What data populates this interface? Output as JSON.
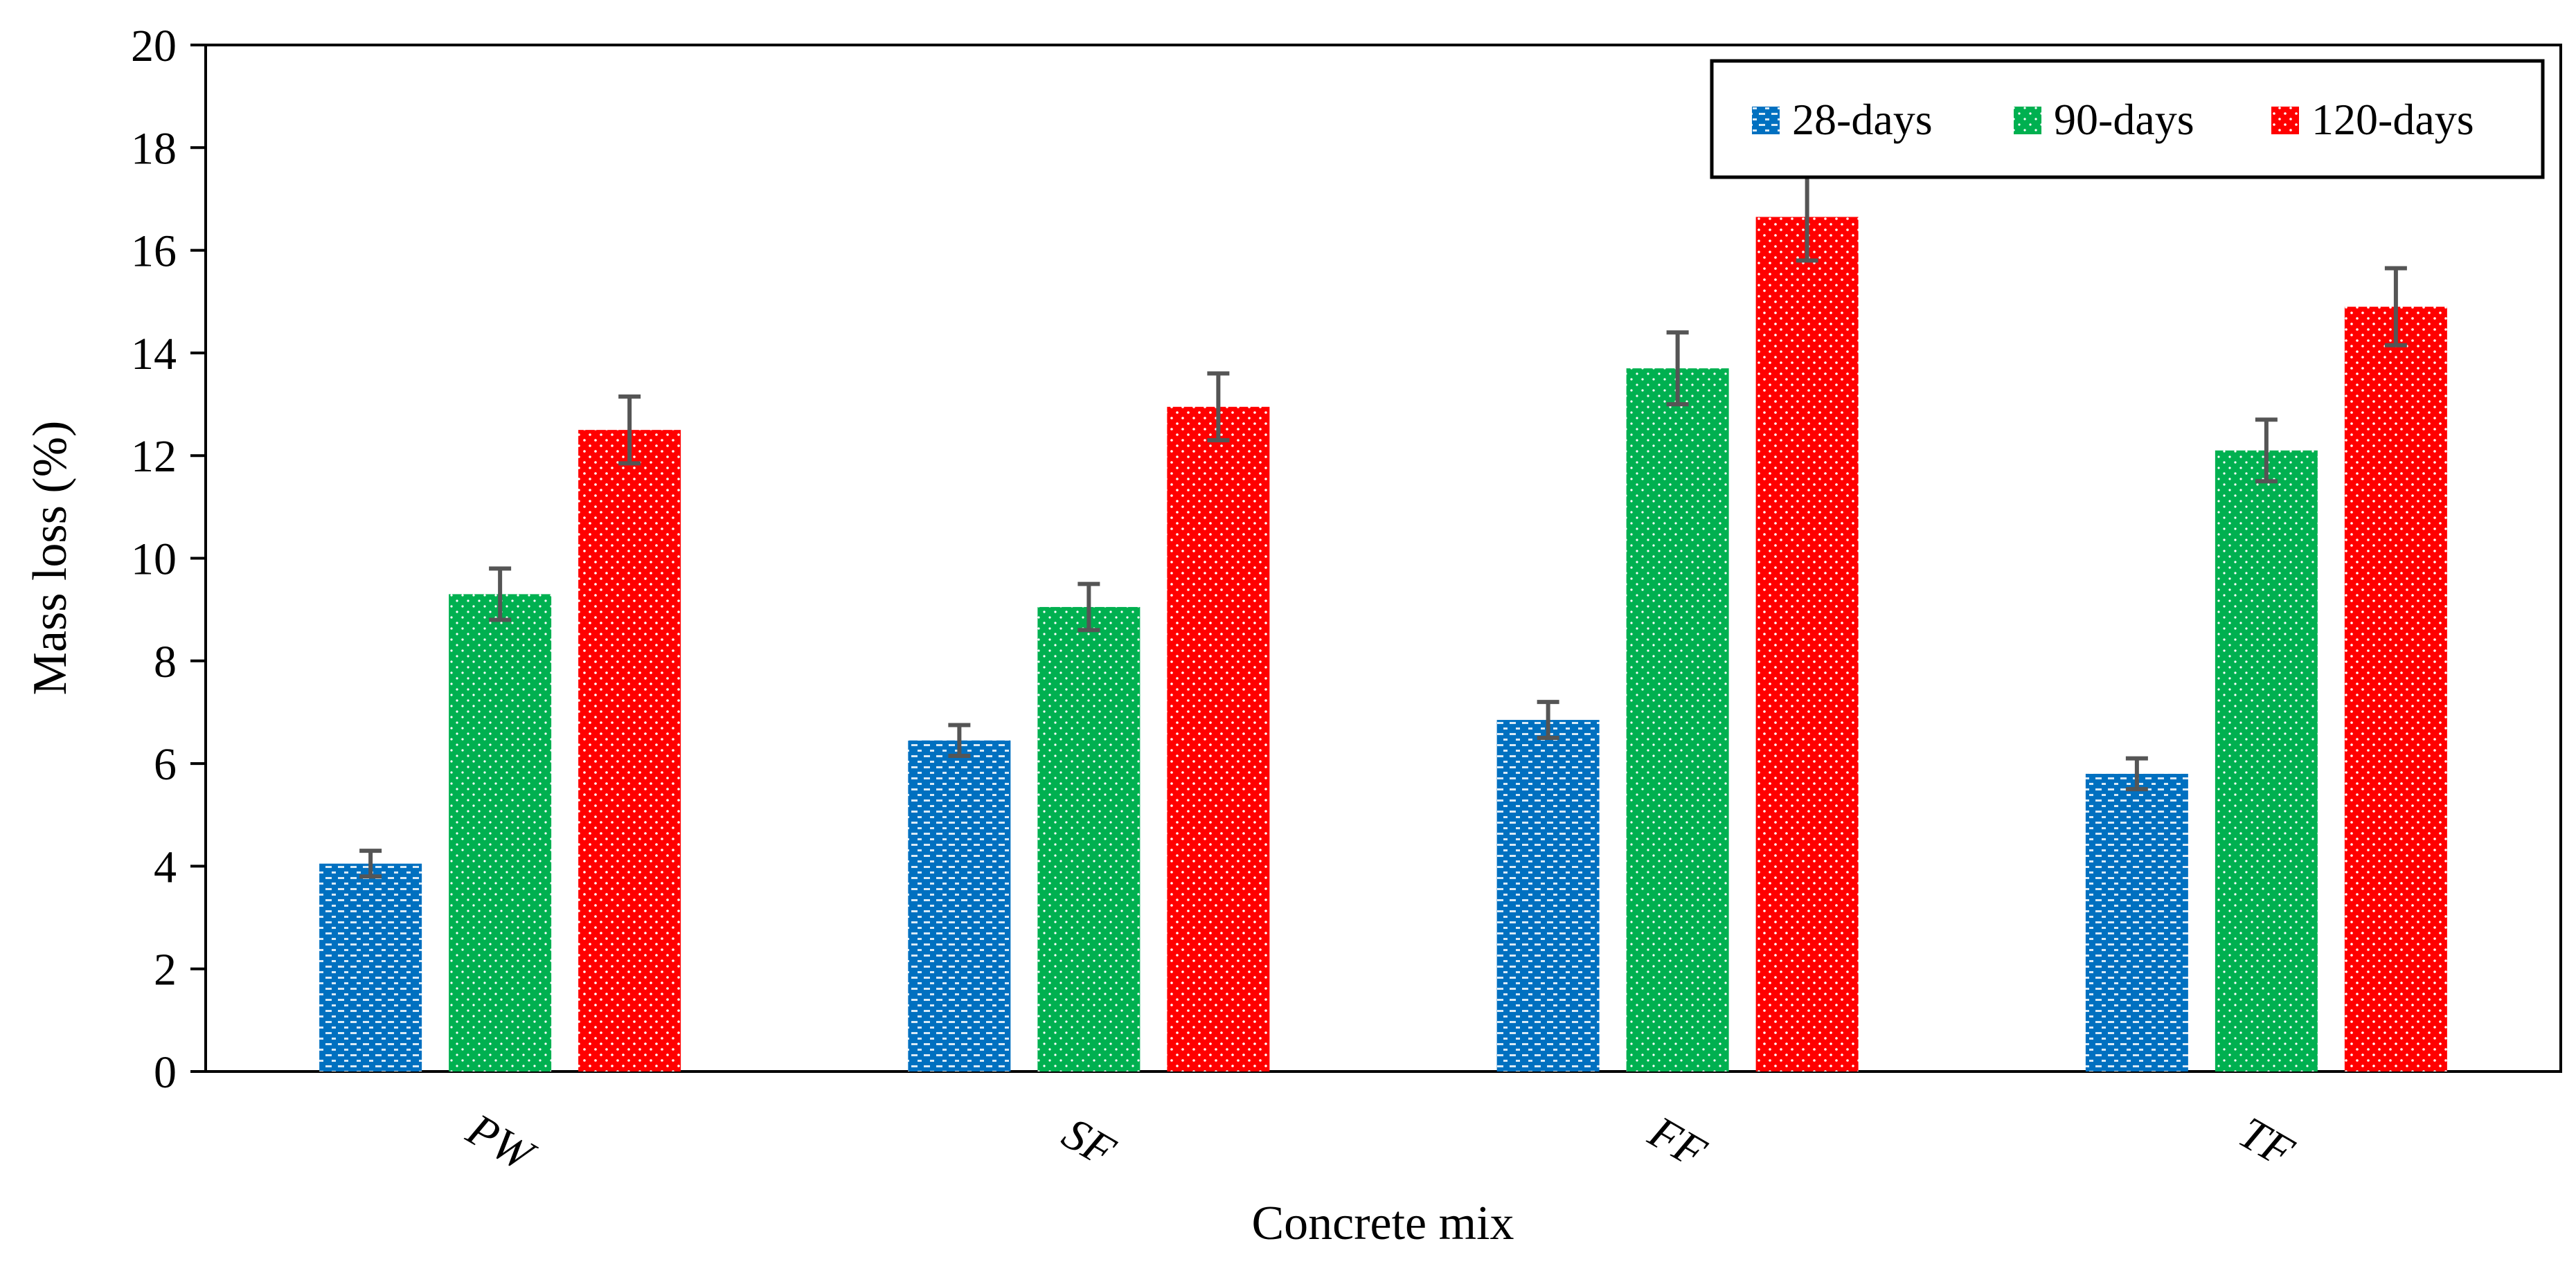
{
  "chart_data": {
    "type": "bar",
    "title": "",
    "xlabel": "Concrete mix",
    "ylabel": "Mass loss (%)",
    "ylim": [
      0,
      20
    ],
    "yticks": [
      0,
      2,
      4,
      6,
      8,
      10,
      12,
      14,
      16,
      18,
      20
    ],
    "categories": [
      "PW",
      "SF",
      "FF",
      "TF"
    ],
    "series": [
      {
        "name": "28-days",
        "color": "#0070C0",
        "values": [
          4.05,
          6.45,
          6.85,
          5.8
        ],
        "errors": [
          0.25,
          0.3,
          0.35,
          0.3
        ]
      },
      {
        "name": "90-days",
        "color": "#00B050",
        "values": [
          9.3,
          9.05,
          13.7,
          12.1
        ],
        "errors": [
          0.5,
          0.45,
          0.7,
          0.6
        ]
      },
      {
        "name": "120-days",
        "color": "#FF0000",
        "values": [
          12.5,
          12.95,
          16.65,
          14.9
        ],
        "errors": [
          0.65,
          0.65,
          0.85,
          0.75
        ]
      }
    ],
    "legend_position": "top-right",
    "grid": false
  }
}
